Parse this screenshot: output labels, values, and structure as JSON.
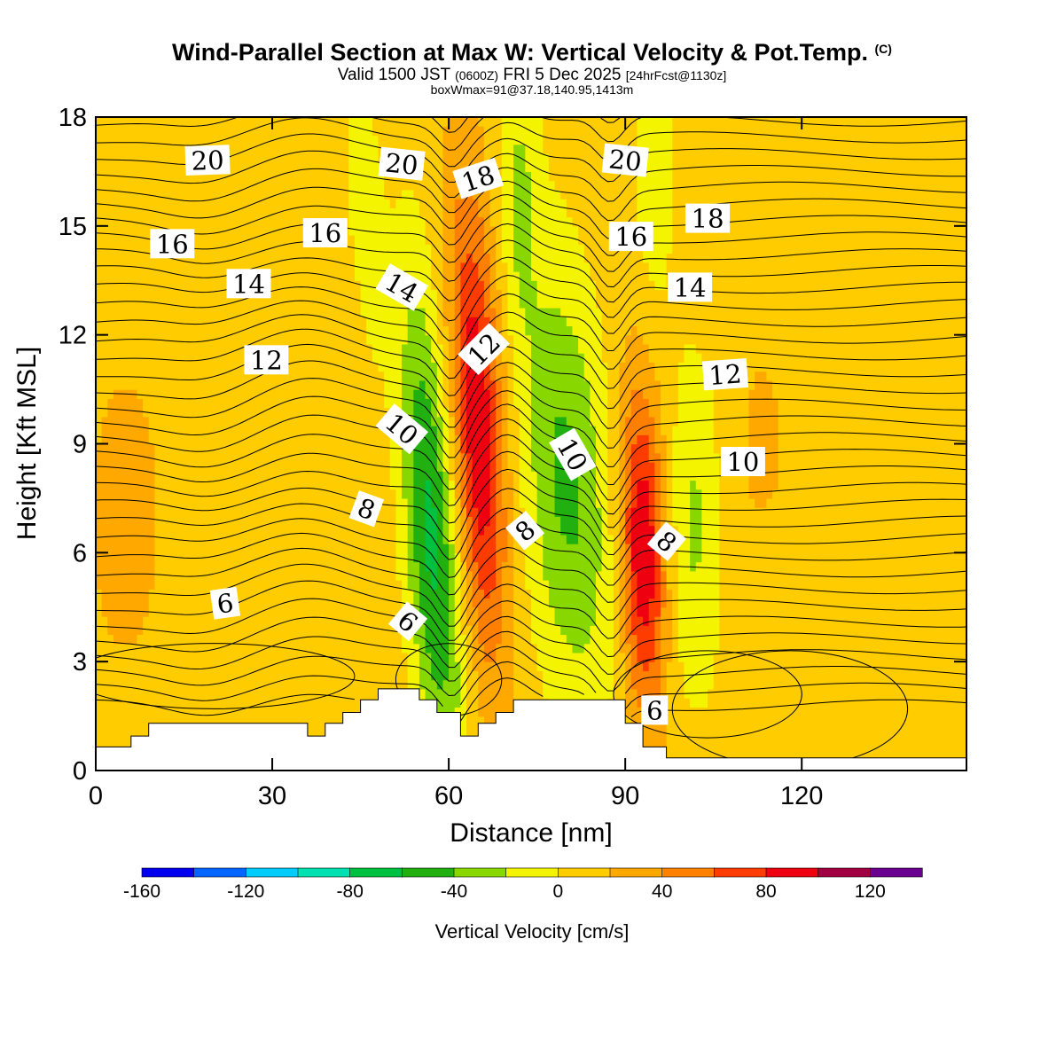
{
  "header": {
    "title": "Wind-Parallel Section at Max W: Vertical Velocity & Pot.Temp.",
    "title_mark": "(C)",
    "valid_prefix": "Valid 1500 JST",
    "valid_utc": "(0600Z)",
    "valid_date": "FRI 5 Dec 2025",
    "forecast": "[24hrFcst@1130z]",
    "boxline": "boxWmax=91@37.18,140.95,1413m"
  },
  "chart_data": {
    "type": "heatmap",
    "xlabel": "Distance [nm]",
    "ylabel": "Height [Kft MSL]",
    "xlim": [
      0,
      148
    ],
    "ylim": [
      0,
      18
    ],
    "x_ticks": [
      0,
      30,
      60,
      90,
      120
    ],
    "y_ticks": [
      0,
      3,
      6,
      9,
      12,
      15,
      18
    ],
    "colorbar": {
      "label": "Vertical Velocity [cm/s]",
      "tick_values": [
        -160,
        -120,
        -80,
        -40,
        0,
        40,
        80,
        120
      ],
      "levels": [
        -160,
        -140,
        -120,
        -100,
        -80,
        -60,
        -40,
        -20,
        0,
        20,
        40,
        60,
        80,
        100,
        120,
        140
      ],
      "colors": [
        "#0000ee",
        "#0066ff",
        "#00ccff",
        "#00e0b0",
        "#00c040",
        "#22b010",
        "#88d800",
        "#f4f400",
        "#ffcc00",
        "#ffa800",
        "#ff8000",
        "#ff3c00",
        "#ee0010",
        "#a00040",
        "#6a0090"
      ]
    },
    "terrain_kft": [
      [
        0,
        0.65
      ],
      [
        6,
        0.65
      ],
      [
        6,
        0.95
      ],
      [
        9,
        0.95
      ],
      [
        9,
        1.3
      ],
      [
        36,
        1.3
      ],
      [
        36,
        0.95
      ],
      [
        39,
        0.95
      ],
      [
        39,
        1.3
      ],
      [
        42,
        1.3
      ],
      [
        42,
        1.6
      ],
      [
        45,
        1.6
      ],
      [
        45,
        1.95
      ],
      [
        48,
        1.95
      ],
      [
        48,
        2.25
      ],
      [
        55,
        2.25
      ],
      [
        55,
        1.95
      ],
      [
        58,
        1.95
      ],
      [
        58,
        1.6
      ],
      [
        62,
        1.6
      ],
      [
        62,
        0.95
      ],
      [
        65,
        0.95
      ],
      [
        65,
        1.3
      ],
      [
        68,
        1.3
      ],
      [
        68,
        1.6
      ],
      [
        71,
        1.6
      ],
      [
        71,
        1.95
      ],
      [
        90,
        1.95
      ],
      [
        90,
        1.3
      ],
      [
        93,
        1.3
      ],
      [
        93,
        0.65
      ],
      [
        97,
        0.65
      ],
      [
        97,
        0.35
      ],
      [
        148,
        0.35
      ]
    ],
    "w_field": {
      "background_cm_s": 10,
      "features": [
        {
          "type": "downdraft",
          "x": 57,
          "y": 6.5,
          "peak_cm_s": -75
        },
        {
          "type": "updraft",
          "x": 65,
          "y": 9.5,
          "peak_cm_s": 90
        },
        {
          "type": "downdraft",
          "x": 80,
          "y": 8,
          "peak_cm_s": -55
        },
        {
          "type": "updraft",
          "x": 93,
          "y": 6,
          "peak_cm_s": 91
        },
        {
          "type": "downdraft",
          "x": 102,
          "y": 7,
          "peak_cm_s": -35
        },
        {
          "type": "downdraft",
          "x": 46,
          "y": 15,
          "peak_cm_s": -30
        },
        {
          "type": "downdraft",
          "x": 72,
          "y": 16,
          "peak_cm_s": -30
        },
        {
          "type": "downdraft",
          "x": 95,
          "y": 16.5,
          "peak_cm_s": -25
        }
      ]
    },
    "theta_labels": [
      {
        "text": "20",
        "x": 19,
        "y": 16.8,
        "angle": -2
      },
      {
        "text": "20",
        "x": 52,
        "y": 16.7,
        "angle": 6
      },
      {
        "text": "18",
        "x": 65,
        "y": 16.3,
        "angle": -18
      },
      {
        "text": "20",
        "x": 90,
        "y": 16.8,
        "angle": 6
      },
      {
        "text": "18",
        "x": 104,
        "y": 15.2,
        "angle": 0
      },
      {
        "text": "16",
        "x": 13,
        "y": 14.5,
        "angle": 0
      },
      {
        "text": "16",
        "x": 39,
        "y": 14.8,
        "angle": 0
      },
      {
        "text": "16",
        "x": 91,
        "y": 14.7,
        "angle": 0
      },
      {
        "text": "14",
        "x": 26,
        "y": 13.4,
        "angle": 0
      },
      {
        "text": "14",
        "x": 52,
        "y": 13.3,
        "angle": 30
      },
      {
        "text": "14",
        "x": 101,
        "y": 13.3,
        "angle": 0
      },
      {
        "text": "12",
        "x": 29,
        "y": 11.3,
        "angle": 0
      },
      {
        "text": "12",
        "x": 66,
        "y": 11.6,
        "angle": -45
      },
      {
        "text": "12",
        "x": 107,
        "y": 10.9,
        "angle": -4
      },
      {
        "text": "10",
        "x": 52,
        "y": 9.4,
        "angle": 40
      },
      {
        "text": "10",
        "x": 81,
        "y": 8.7,
        "angle": 60
      },
      {
        "text": "10",
        "x": 110,
        "y": 8.5,
        "angle": 0
      },
      {
        "text": "8",
        "x": 46,
        "y": 7.2,
        "angle": 20
      },
      {
        "text": "8",
        "x": 73,
        "y": 6.6,
        "angle": -40
      },
      {
        "text": "8",
        "x": 97,
        "y": 6.3,
        "angle": 40
      },
      {
        "text": "6",
        "x": 22,
        "y": 4.6,
        "angle": -8
      },
      {
        "text": "6",
        "x": 53,
        "y": 4.1,
        "angle": 40
      },
      {
        "text": "6",
        "x": 95,
        "y": 1.65,
        "angle": 0
      }
    ]
  }
}
